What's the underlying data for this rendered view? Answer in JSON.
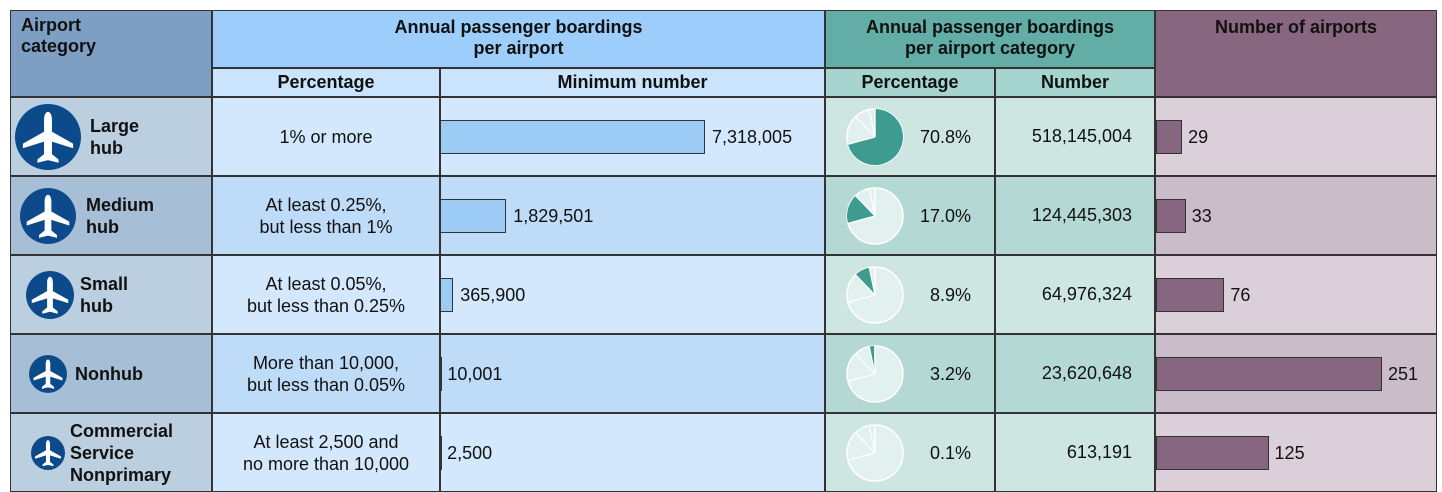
{
  "header": {
    "category": "Airport\ncategory",
    "per_airport": "Annual passenger boardings\nper airport",
    "per_category": "Annual passenger boardings\nper airport category",
    "airports": "Number of airports",
    "percentage": "Percentage",
    "minimum": "Minimum number",
    "category_percentage": "Percentage",
    "number": "Number"
  },
  "rows": [
    {
      "category": "Large\nhub",
      "percentage": "1% or more",
      "minimum": {
        "value": 7318005,
        "label": "7,318,005"
      },
      "share": {
        "value": 70.8,
        "label": "70.8%"
      },
      "number": {
        "value": 518145004,
        "label": "518,145,004"
      },
      "airports": 29
    },
    {
      "category": "Medium\nhub",
      "percentage": "At least 0.25%,\nbut less than 1%",
      "minimum": {
        "value": 1829501,
        "label": "1,829,501"
      },
      "share": {
        "value": 17.0,
        "label": "17.0%"
      },
      "number": {
        "value": 124445303,
        "label": "124,445,303"
      },
      "airports": 33
    },
    {
      "category": "Small\nhub",
      "percentage": "At least 0.05%,\nbut less than 0.25%",
      "minimum": {
        "value": 365900,
        "label": "365,900"
      },
      "share": {
        "value": 8.9,
        "label": "8.9%"
      },
      "number": {
        "value": 64976324,
        "label": "64,976,324"
      },
      "airports": 76
    },
    {
      "category": "Nonhub",
      "percentage": "More than 10,000,\nbut less than 0.05%",
      "minimum": {
        "value": 10001,
        "label": "10,001"
      },
      "share": {
        "value": 3.2,
        "label": "3.2%"
      },
      "number": {
        "value": 23620648,
        "label": "23,620,648"
      },
      "airports": 251
    },
    {
      "category": "Commercial\nService\nNonprimary",
      "percentage": "At least 2,500 and\nno more than 10,000",
      "minimum": {
        "value": 2500,
        "label": "2,500"
      },
      "share": {
        "value": 0.1,
        "label": "0.1%"
      },
      "number": {
        "value": 613191,
        "label": "613,191"
      },
      "airports": 125
    }
  ]
}
